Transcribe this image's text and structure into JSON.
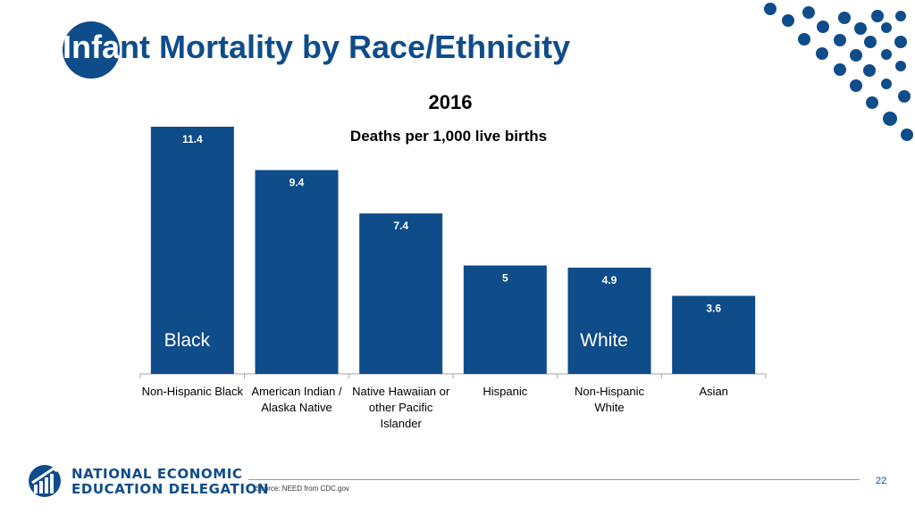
{
  "slide": {
    "title": "Infant Mortality by Race/Ethnicity",
    "title_highlight": "Infant",
    "source": "Source: NEED from CDC.gov",
    "page_number": "22"
  },
  "logo": {
    "line1": "NATIONAL ECONOMIC",
    "line2": "EDUCATION DELEGATION"
  },
  "colors": {
    "primary": "#0f4c8a",
    "bar": "#0f4c8a",
    "bar_label": "#ffffff",
    "axis": "#a6a6a6"
  },
  "chart_data": {
    "type": "bar",
    "title": "2016",
    "subtitle": "Deaths per 1,000 live births",
    "categories": [
      [
        "Non-Hispanic Black"
      ],
      [
        "American Indian /",
        "Alaska Native"
      ],
      [
        "Native Hawaiian or",
        "other Pacific",
        "Islander"
      ],
      [
        "Hispanic"
      ],
      [
        "Non-Hispanic",
        "White"
      ],
      [
        "Asian"
      ]
    ],
    "values": [
      11.4,
      9.4,
      7.4,
      5,
      4.9,
      3.6
    ],
    "value_labels": [
      "11.4",
      "9.4",
      "7.4",
      "5",
      "4.9",
      "3.6"
    ],
    "annotations": [
      {
        "bar_index": 0,
        "text": "Black"
      },
      {
        "bar_index": 4,
        "text": "White"
      }
    ],
    "ylim": [
      0,
      11.4
    ],
    "grid": false,
    "legend": false,
    "xlabel": "",
    "ylabel": ""
  }
}
